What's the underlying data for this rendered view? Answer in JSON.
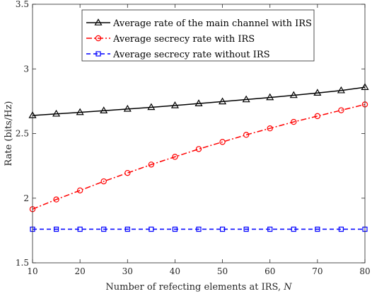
{
  "chart_data": {
    "type": "line",
    "xlabel": "Number of refecting elements at IRS,",
    "xlabel_var": "N",
    "ylabel": "Rate (bits/Hz)",
    "xlim": [
      10,
      80
    ],
    "ylim": [
      1.5,
      3.5
    ],
    "x_ticks": [
      10,
      20,
      30,
      40,
      50,
      60,
      70,
      80
    ],
    "y_ticks": [
      1.5,
      2,
      2.5,
      3,
      3.5
    ],
    "x_tick_labels": [
      "10",
      "20",
      "30",
      "40",
      "50",
      "60",
      "70",
      "80"
    ],
    "y_tick_labels": [
      "1.5",
      "2",
      "2.5",
      "3",
      "3.5"
    ],
    "grid": false,
    "legend_position": "top-right",
    "x": [
      10,
      15,
      20,
      25,
      30,
      35,
      40,
      45,
      50,
      55,
      60,
      65,
      70,
      75,
      80
    ],
    "series": [
      {
        "name": "Average rate of the main channel with IRS",
        "color": "#000000",
        "marker": "triangle",
        "line_style": "solid",
        "values": [
          2.64,
          2.652,
          2.664,
          2.677,
          2.69,
          2.703,
          2.717,
          2.732,
          2.747,
          2.763,
          2.779,
          2.796,
          2.814,
          2.833,
          2.858
        ]
      },
      {
        "name": "Average secrecy rate with IRS",
        "color": "#ff0000",
        "marker": "circle",
        "line_style": "dashdot",
        "values": [
          1.915,
          1.99,
          2.06,
          2.13,
          2.195,
          2.26,
          2.32,
          2.38,
          2.435,
          2.49,
          2.54,
          2.59,
          2.635,
          2.68,
          2.725
        ]
      },
      {
        "name": "Average secrecy rate without IRS",
        "color": "#0000ff",
        "marker": "square",
        "line_style": "dashed",
        "values": [
          1.76,
          1.76,
          1.76,
          1.76,
          1.76,
          1.76,
          1.76,
          1.76,
          1.76,
          1.76,
          1.76,
          1.76,
          1.76,
          1.76,
          1.76
        ]
      }
    ]
  }
}
